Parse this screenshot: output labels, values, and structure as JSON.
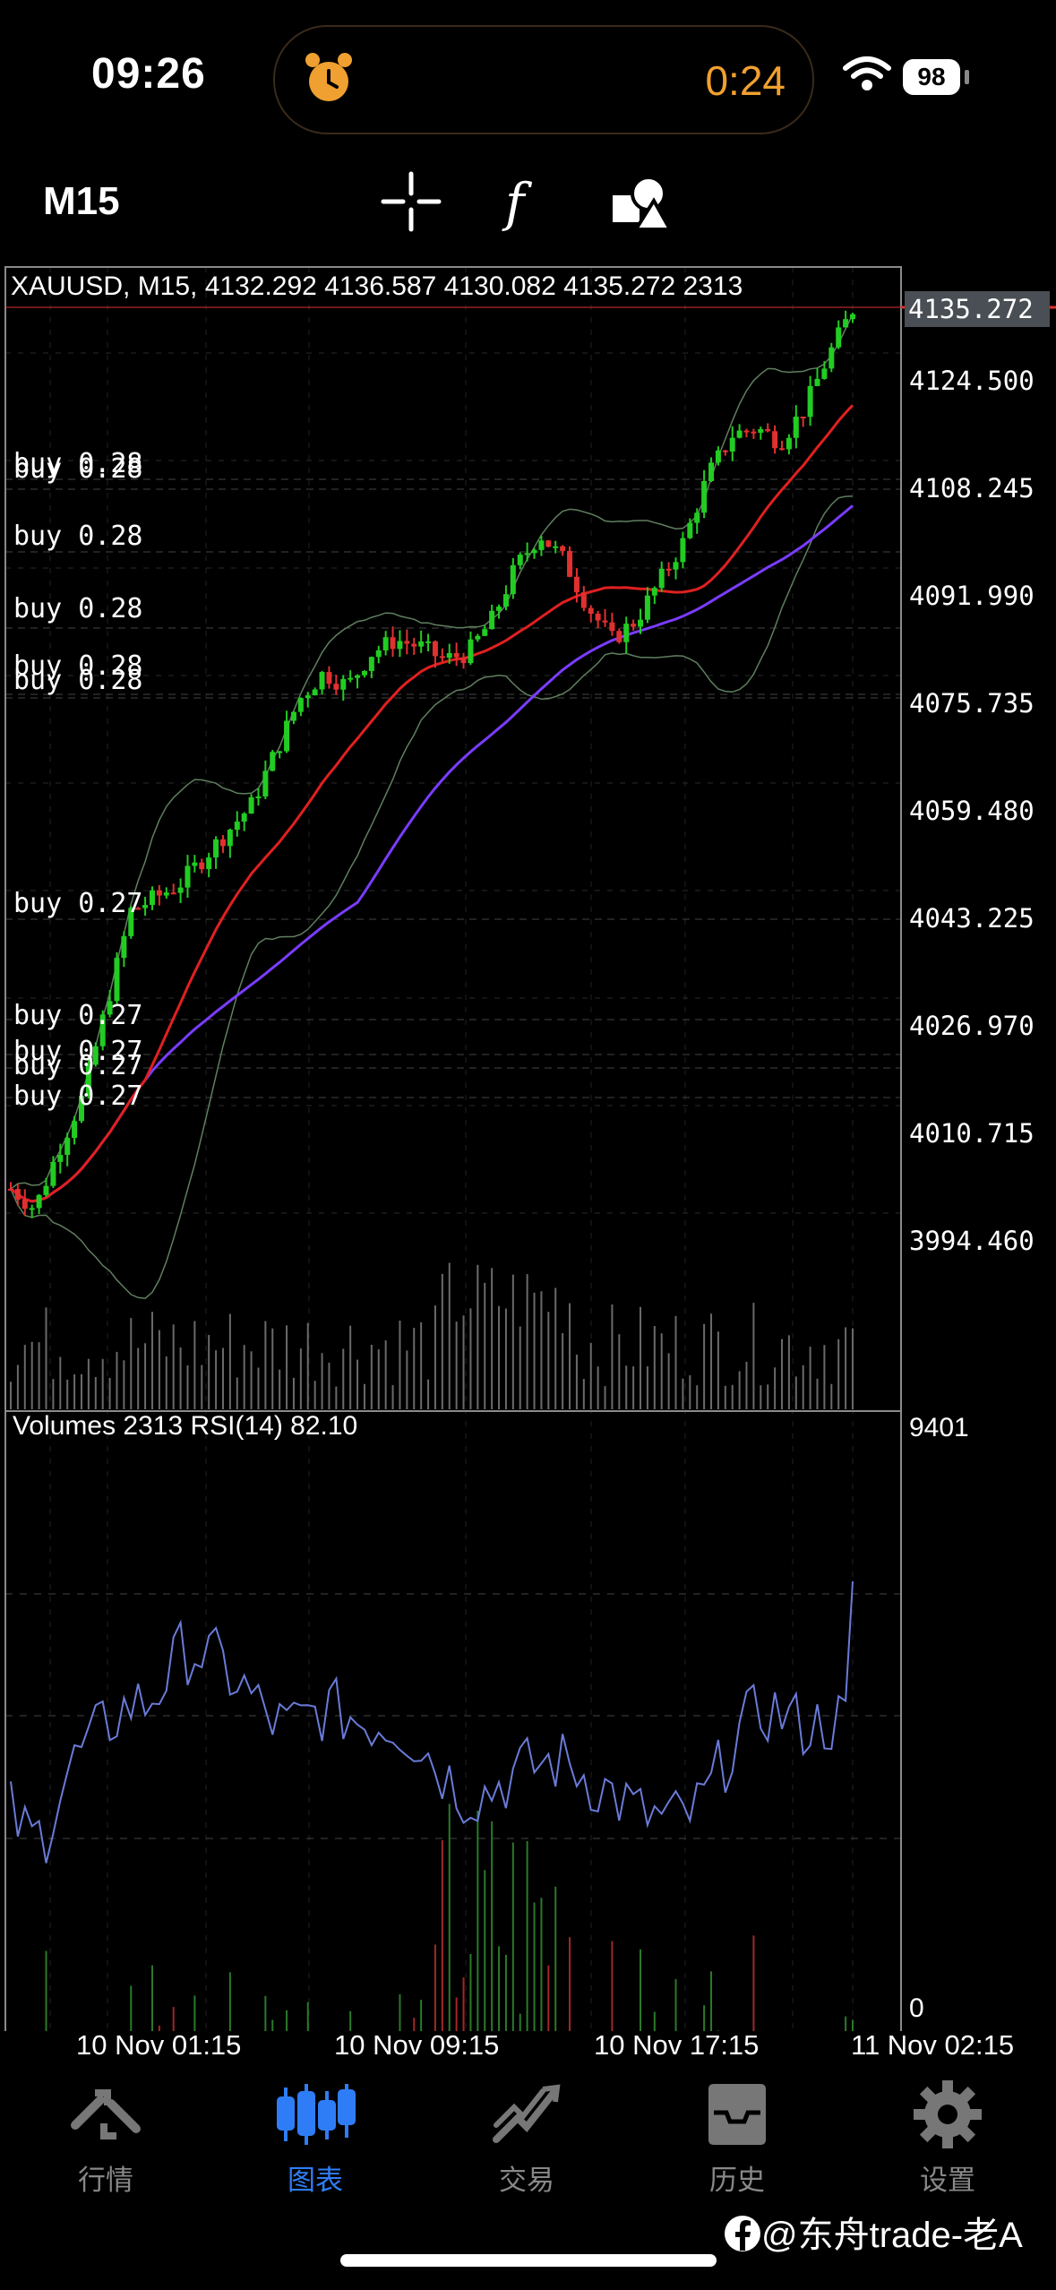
{
  "status_bar": {
    "time": "09:26",
    "timer": "0:24",
    "battery": "98"
  },
  "toolbar": {
    "timeframe": "M15",
    "icons": [
      "crosshair-icon",
      "function-icon",
      "objects-icon"
    ]
  },
  "chart": {
    "symbol_line": "XAUUSD, M15, 4132.292 4136.587 4130.082 4135.272 2313",
    "current_price": "4135.272",
    "price_labels": [
      "4124.500",
      "4108.245",
      "4091.990",
      "4075.735",
      "4059.480",
      "4043.225",
      "4026.970",
      "4010.715",
      "3994.460"
    ],
    "buy_labels": [
      "buy 0.28",
      "buy 0.28",
      "buy 0.28",
      "buy 0.28",
      "buy 0.28",
      "buy 0.28",
      "buy 0.27",
      "buy 0.27",
      "buy 0.27",
      "buy 0.27",
      "buy 0.27"
    ],
    "indicator_label": "Volumes 2313 RSI(14) 82.10",
    "volume_max": "9401",
    "volume_min": "0",
    "time_labels": [
      "10 Nov 01:15",
      "10 Nov 09:15",
      "10 Nov 17:15",
      "11 Nov 02:15"
    ],
    "colors": {
      "up": "#22cc22",
      "down": "#e03030",
      "ma_fast": "#e02020",
      "ma_slow": "#7a3cff",
      "bands": "#5f7f5f",
      "rsi": "#6a7bd8"
    }
  },
  "chart_data": {
    "type": "candlestick",
    "symbol": "XAUUSD",
    "timeframe": "M15",
    "ohlc_last": {
      "open": 4132.292,
      "high": 4136.587,
      "low": 4130.082,
      "close": 4135.272,
      "volume": 2313
    },
    "close_path": [
      4002,
      3999,
      4008,
      4016,
      4030,
      4044,
      4046,
      4048,
      4052,
      4056,
      4060,
      4068,
      4076,
      4080,
      4078,
      4083,
      4085,
      4084,
      4082,
      4083,
      4088,
      4096,
      4101,
      4097,
      4090,
      4085,
      4088,
      4094,
      4100,
      4110,
      4116,
      4117,
      4115,
      4120,
      4128,
      4135
    ],
    "rsi": 82.1,
    "volume_range": [
      0,
      9401
    ],
    "time_labels": [
      "10 Nov 01:15",
      "10 Nov 09:15",
      "10 Nov 17:15",
      "11 Nov 02:15"
    ]
  },
  "tabbar": {
    "items": [
      {
        "label": "行情",
        "icon": "quotes-icon",
        "active": false
      },
      {
        "label": "图表",
        "icon": "chart-icon",
        "active": true
      },
      {
        "label": "交易",
        "icon": "trade-icon",
        "active": false
      },
      {
        "label": "历史",
        "icon": "history-icon",
        "active": false
      },
      {
        "label": "设置",
        "icon": "settings-icon",
        "active": false
      }
    ]
  },
  "watermark": "@东舟trade-老A"
}
